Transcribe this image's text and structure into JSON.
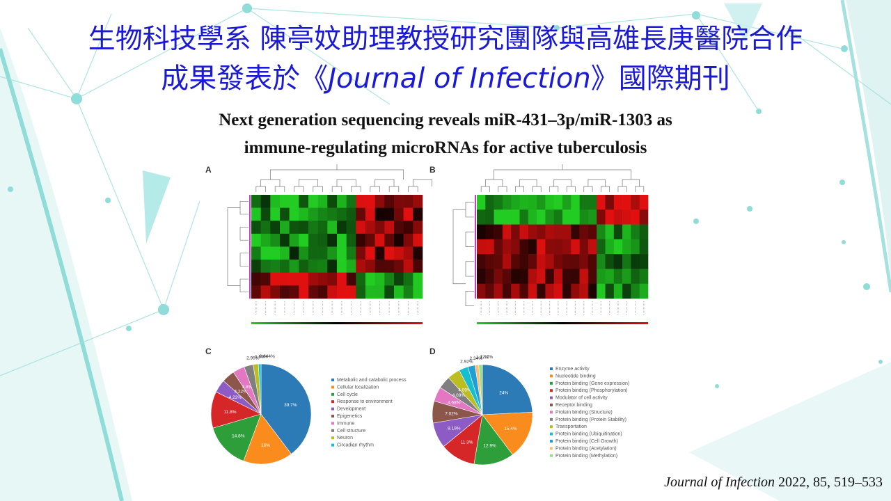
{
  "title": {
    "line1": "生物科技學系 陳亭妏助理教授研究團隊與高雄長庚醫院合作",
    "line2_prefix": "成果發表於《",
    "line2_journal": "Journal of Infection",
    "line2_suffix": "》國際期刊"
  },
  "paper_title": {
    "line1": "Next generation sequencing reveals miR-431–3p/miR-1303 as",
    "line2": "immune-regulating microRNAs for active tuberculosis"
  },
  "figure": {
    "panel_labels": [
      "A",
      "B",
      "C",
      "D"
    ],
    "colors": {
      "green": "#22cc22",
      "red": "#e01010",
      "black": "#000000"
    }
  },
  "citation": {
    "journal": "Journal of Infection",
    "details": " 2022, 85, 519–533"
  },
  "chart_data": [
    {
      "type": "pie",
      "panel": "C",
      "categories": [
        "Metabolic and catabolic process",
        "Cellular localization",
        "Cell cycle",
        "Response to environment",
        "Development",
        "Epigenetics",
        "Immune",
        "Cell structure",
        "Neuron",
        "Circadian rhythm"
      ],
      "values": [
        39.7,
        16,
        14.8,
        11.8,
        4.22,
        4.22,
        3.8,
        2.95,
        1.69,
        0.844
      ],
      "labels": [
        "39.7%",
        "16%",
        "14.8%",
        "11.8%",
        "4.22%",
        "4.22%",
        "3.8%",
        "2.95%",
        "1.69%",
        "0.844%"
      ],
      "colors": [
        "#2c7bb6",
        "#f98c1c",
        "#2e9e3a",
        "#d62728",
        "#8c5cc4",
        "#8c564b",
        "#e377c2",
        "#7f7f7f",
        "#bcbd22",
        "#17becf"
      ],
      "legend_position": "right"
    },
    {
      "type": "pie",
      "panel": "D",
      "categories": [
        "Enzyme activity",
        "Nucleotide binding",
        "Protein binding (Gene expression)",
        "Protein binding (Phosphorylation)",
        "Modulator of cell activity",
        "Receptor binding",
        "Protein binding (Structure)",
        "Protein binding (Protein Stability)",
        "Transportation",
        "Protein binding (Ubiquitination)",
        "Protein binding (Cell Growth)",
        "Protein binding (Acetylation)",
        "Protein binding (Methylation)"
      ],
      "values": [
        24,
        15.4,
        12.9,
        11.3,
        8.19,
        7.02,
        4.68,
        4.09,
        4.09,
        2.92,
        2.34,
        1.17,
        1.17
      ],
      "labels": [
        "24%",
        "15.4%",
        "12.9%",
        "11.3%",
        "8.19%",
        "7.02%",
        "4.68%",
        "4.09%",
        "4.09%",
        "2.92%",
        "2.34%",
        "1.17%",
        "1.17%"
      ],
      "colors": [
        "#2c7bb6",
        "#f98c1c",
        "#2e9e3a",
        "#d62728",
        "#8c5cc4",
        "#8c564b",
        "#e377c2",
        "#7f7f7f",
        "#bcbd22",
        "#17becf",
        "#1f9fd4",
        "#ffbb78",
        "#98df8a"
      ],
      "legend_position": "right"
    }
  ]
}
